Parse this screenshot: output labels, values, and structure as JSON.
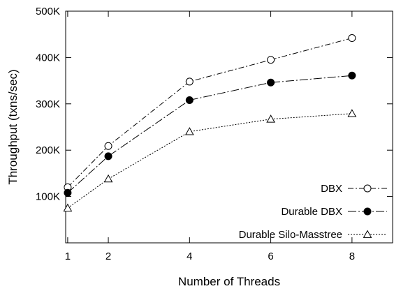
{
  "chart_data": {
    "type": "line",
    "xlabel": "Number of Threads",
    "ylabel": "Throughput (txns/sec)",
    "x": [
      1,
      2,
      4,
      6,
      8
    ],
    "xlim": [
      0.95,
      9
    ],
    "ylim": [
      0,
      500000
    ],
    "x_ticks": [
      1,
      2,
      4,
      6,
      8
    ],
    "y_ticks": [
      {
        "value": 100000,
        "label": "100K"
      },
      {
        "value": 200000,
        "label": "200K"
      },
      {
        "value": 300000,
        "label": "300K"
      },
      {
        "value": 400000,
        "label": "400K"
      },
      {
        "value": 500000,
        "label": "500K"
      }
    ],
    "grid": false,
    "legend_position": "bottom-right",
    "series": [
      {
        "name": "DBX",
        "marker": "open-circle",
        "line_style": "dash-dot",
        "values": [
          120000,
          209000,
          348000,
          395000,
          442000
        ]
      },
      {
        "name": "Durable DBX",
        "marker": "filled-circle",
        "line_style": "long-dash-dot",
        "values": [
          108000,
          187000,
          308000,
          346000,
          361000
        ]
      },
      {
        "name": "Durable Silo-Masstree",
        "marker": "open-triangle",
        "line_style": "dotted",
        "values": [
          75000,
          138000,
          240000,
          267000,
          279000
        ]
      }
    ]
  }
}
